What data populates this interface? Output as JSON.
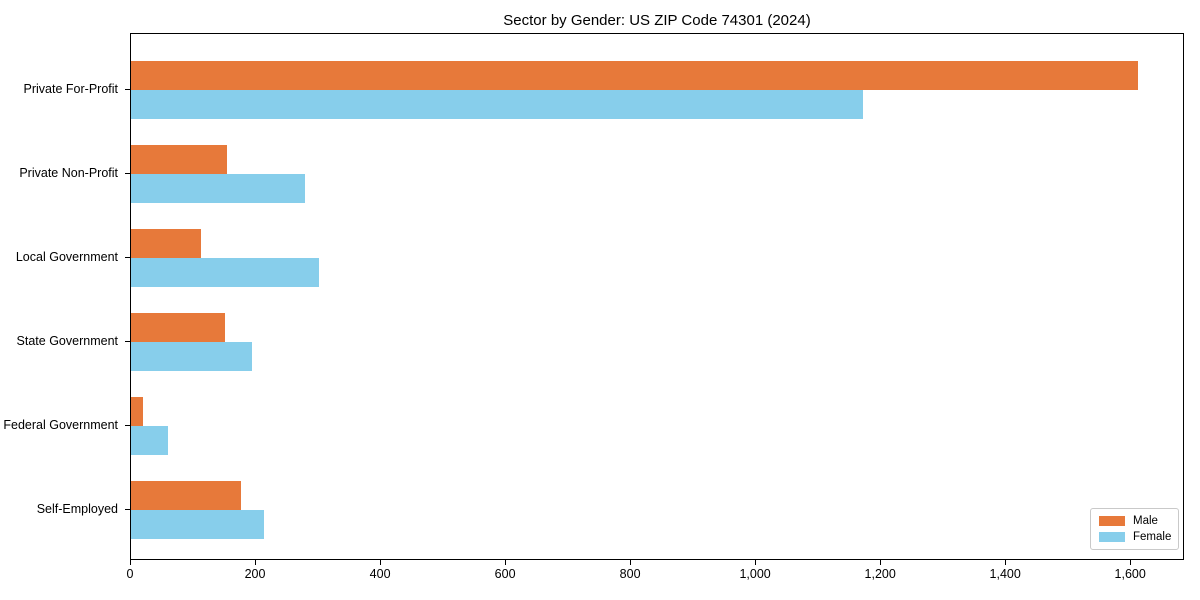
{
  "chart_data": {
    "type": "bar",
    "orientation": "horizontal",
    "title": "Sector by Gender: US ZIP Code 74301 (2024)",
    "categories": [
      "Private For-Profit",
      "Private Non-Profit",
      "Local Government",
      "State Government",
      "Federal Government",
      "Self-Employed"
    ],
    "series": [
      {
        "name": "Male",
        "color": "#e7793a",
        "values": [
          1610,
          154,
          112,
          150,
          19,
          176
        ]
      },
      {
        "name": "Female",
        "color": "#87ceeb",
        "values": [
          1171,
          278,
          301,
          194,
          59,
          213
        ]
      }
    ],
    "xlim": [
      0,
      1686
    ],
    "x_ticks": [
      0,
      200,
      400,
      600,
      800,
      1000,
      1200,
      1400,
      1600
    ],
    "x_tick_labels": [
      "0",
      "200",
      "400",
      "600",
      "800",
      "1,000",
      "1,200",
      "1,400",
      "1,600"
    ],
    "xlabel": "",
    "ylabel": "",
    "grid": false,
    "legend_position": "lower right",
    "background_color": "#ffffff",
    "spine_color": "#000000",
    "text_color": "#000000"
  }
}
